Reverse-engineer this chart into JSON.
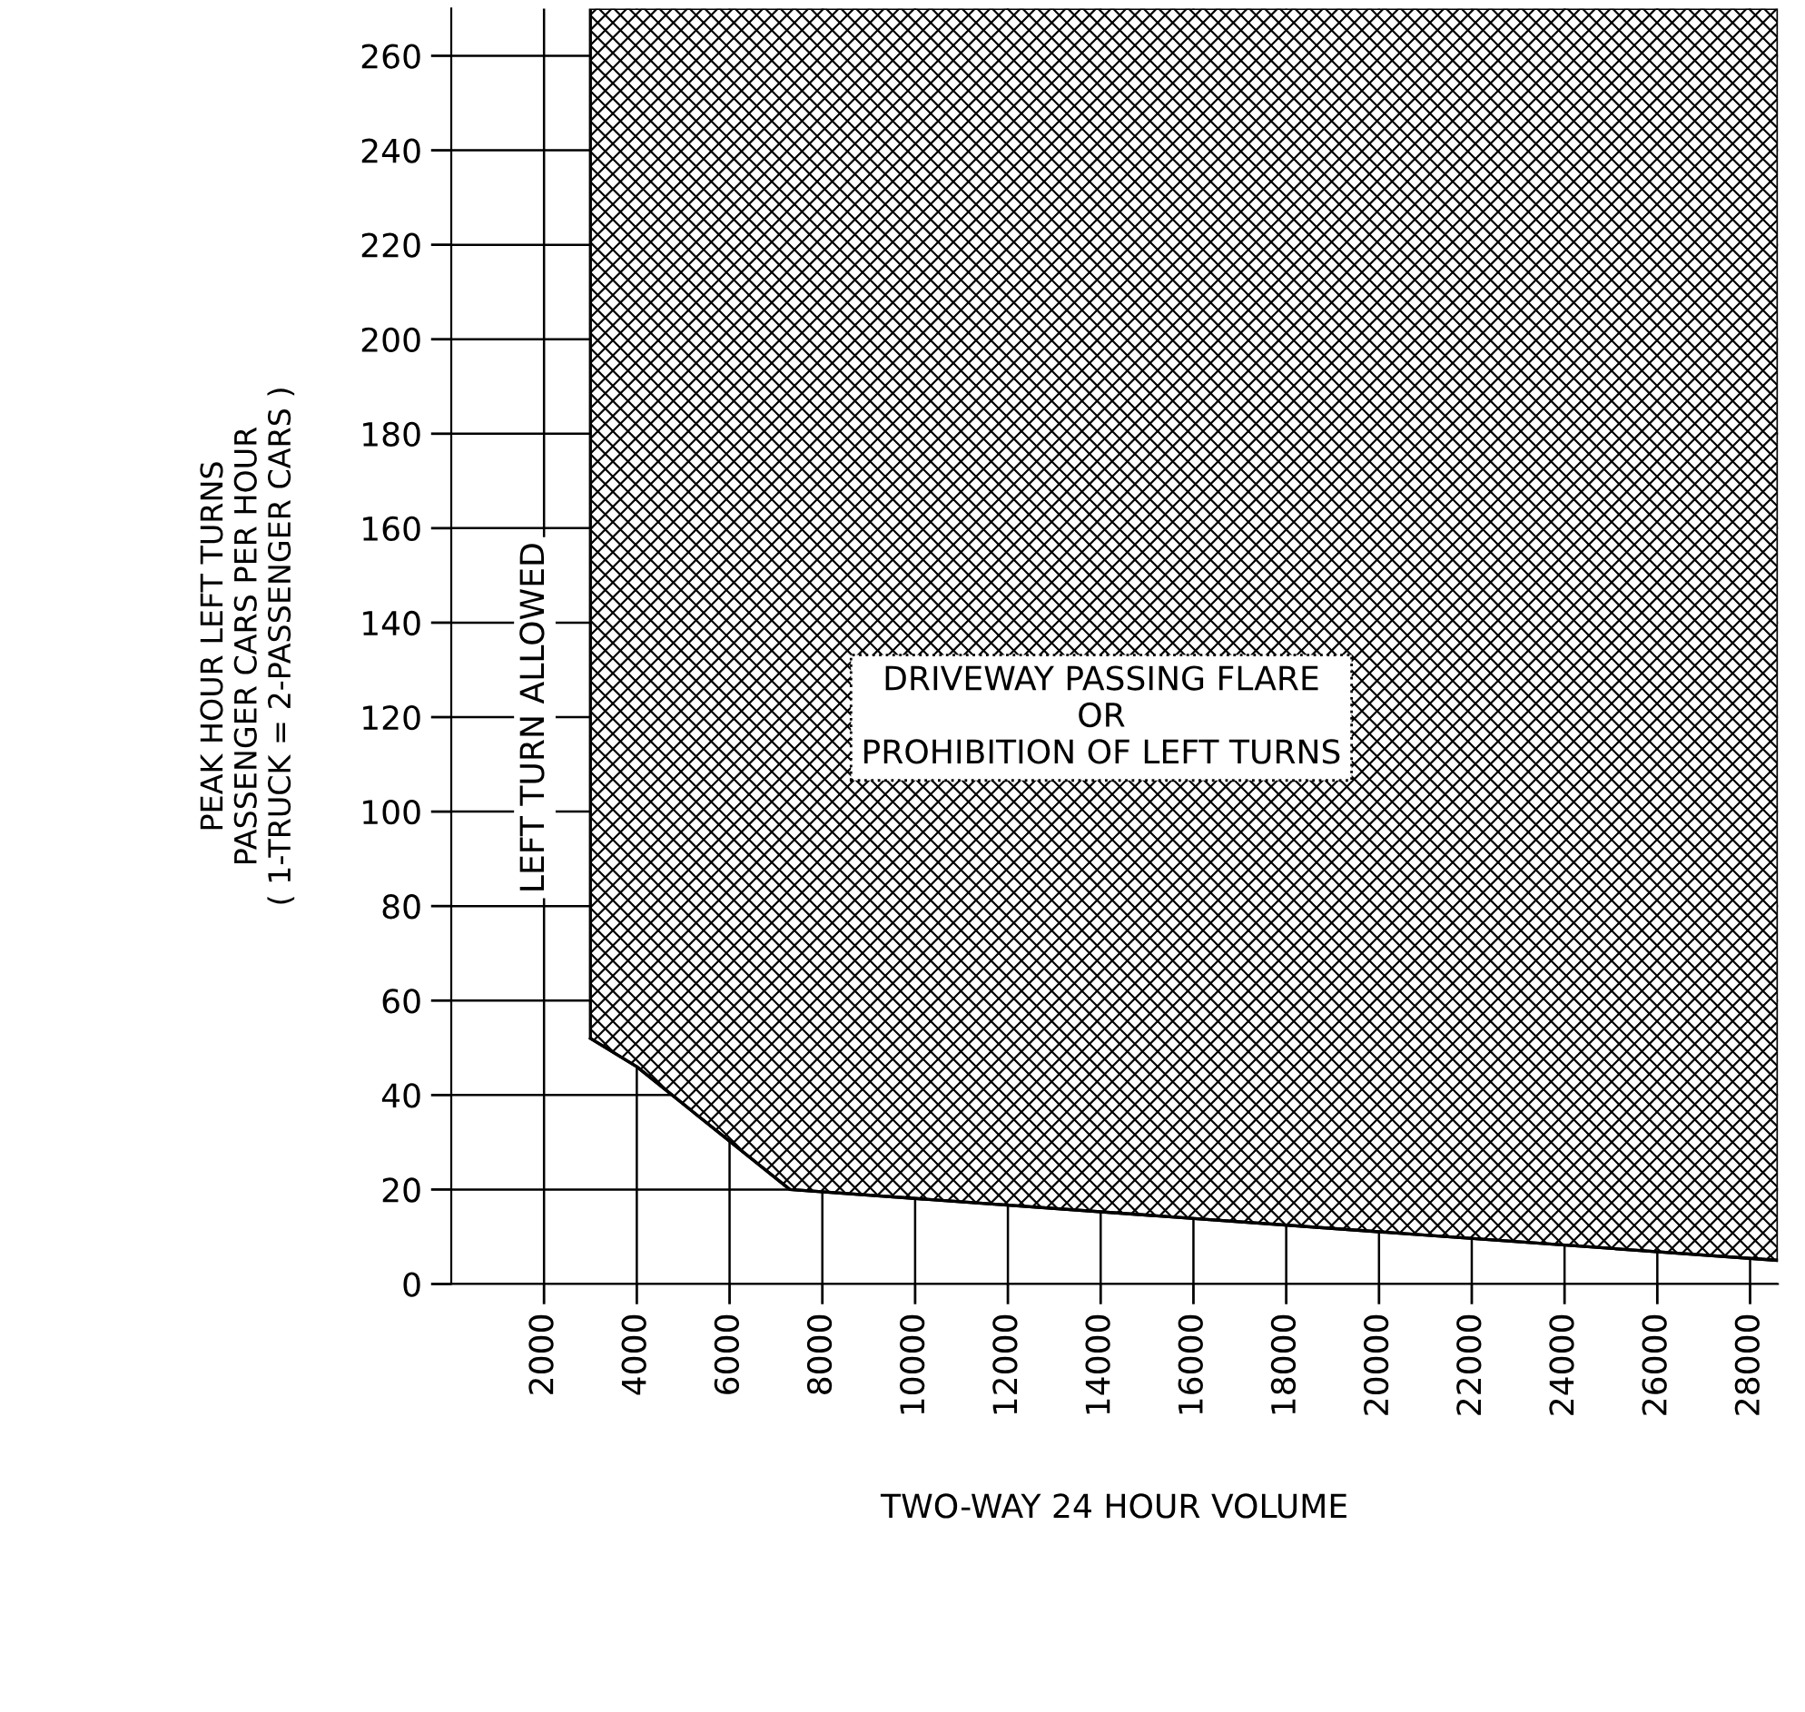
{
  "chart_data": {
    "type": "line",
    "xlabel": "TWO-WAY 24 HOUR VOLUME",
    "ylabel": "PEAK HOUR LEFT TURNS\nPASSENGER CARS PER HOUR\n( 1-TRUCK = 2-PASSENGER CARS )",
    "annotations": [
      "DRIVEWAY PASSING FLARE\nOR\nPROHIBITION OF LEFT TURNS",
      "LEFT TURN ALLOWED"
    ],
    "series": [
      {
        "color": "#000000",
        "x": [
          3000,
          4000,
          7300,
          28600
        ],
        "values": [
          52,
          46,
          20,
          5
        ],
        "lower": [
          52,
          46,
          20,
          5
        ],
        "upper": [
          270,
          270,
          270,
          270
        ]
      }
    ],
    "xlim": [
      0,
      28600
    ],
    "ylim": [
      0,
      270
    ],
    "xticks": [
      2000,
      4000,
      6000,
      8000,
      10000,
      12000,
      14000,
      16000,
      18000,
      20000,
      22000,
      24000,
      26000,
      28000
    ],
    "yticks": [
      0,
      20,
      40,
      60,
      80,
      100,
      120,
      140,
      160,
      180,
      200,
      220,
      240,
      260
    ],
    "grid": true,
    "legend": false
  }
}
